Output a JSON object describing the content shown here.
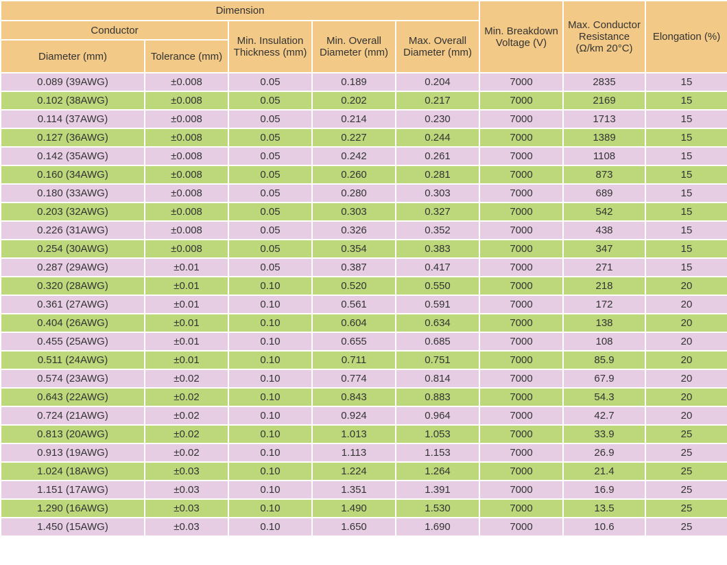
{
  "headers": {
    "dimension": "Dimension",
    "conductor": "Conductor",
    "diameter": "Diameter (mm)",
    "tolerance": "Tolerance (mm)",
    "min_insulation": "Min. Insulation Thickness (mm)",
    "min_overall": "Min. Overall Diameter (mm)",
    "max_overall": "Max. Overall Diameter (mm)",
    "breakdown": "Min. Breakdown Voltage (V)",
    "resistance": "Max. Conductor Resistance (Ω/km 20°C)",
    "elongation": "Elongation (%)"
  },
  "rows": [
    [
      "0.089 (39AWG)",
      "±0.008",
      "0.05",
      "0.189",
      "0.204",
      "7000",
      "2835",
      "15"
    ],
    [
      "0.102 (38AWG)",
      "±0.008",
      "0.05",
      "0.202",
      "0.217",
      "7000",
      "2169",
      "15"
    ],
    [
      "0.114 (37AWG)",
      "±0.008",
      "0.05",
      "0.214",
      "0.230",
      "7000",
      "1713",
      "15"
    ],
    [
      "0.127 (36AWG)",
      "±0.008",
      "0.05",
      "0.227",
      "0.244",
      "7000",
      "1389",
      "15"
    ],
    [
      "0.142 (35AWG)",
      "±0.008",
      "0.05",
      "0.242",
      "0.261",
      "7000",
      "1108",
      "15"
    ],
    [
      "0.160 (34AWG)",
      "±0.008",
      "0.05",
      "0.260",
      "0.281",
      "7000",
      "873",
      "15"
    ],
    [
      "0.180 (33AWG)",
      "±0.008",
      "0.05",
      "0.280",
      "0.303",
      "7000",
      "689",
      "15"
    ],
    [
      "0.203 (32AWG)",
      "±0.008",
      "0.05",
      "0.303",
      "0.327",
      "7000",
      "542",
      "15"
    ],
    [
      "0.226 (31AWG)",
      "±0.008",
      "0.05",
      "0.326",
      "0.352",
      "7000",
      "438",
      "15"
    ],
    [
      "0.254 (30AWG)",
      "±0.008",
      "0.05",
      "0.354",
      "0.383",
      "7000",
      "347",
      "15"
    ],
    [
      "0.287 (29AWG)",
      "±0.01",
      "0.05",
      "0.387",
      "0.417",
      "7000",
      "271",
      "15"
    ],
    [
      "0.320 (28AWG)",
      "±0.01",
      "0.10",
      "0.520",
      "0.550",
      "7000",
      "218",
      "20"
    ],
    [
      "0.361 (27AWG)",
      "±0.01",
      "0.10",
      "0.561",
      "0.591",
      "7000",
      "172",
      "20"
    ],
    [
      "0.404 (26AWG)",
      "±0.01",
      "0.10",
      "0.604",
      "0.634",
      "7000",
      "138",
      "20"
    ],
    [
      "0.455 (25AWG)",
      "±0.01",
      "0.10",
      "0.655",
      "0.685",
      "7000",
      "108",
      "20"
    ],
    [
      "0.511 (24AWG)",
      "±0.01",
      "0.10",
      "0.711",
      "0.751",
      "7000",
      "85.9",
      "20"
    ],
    [
      "0.574 (23AWG)",
      "±0.02",
      "0.10",
      "0.774",
      "0.814",
      "7000",
      "67.9",
      "20"
    ],
    [
      "0.643 (22AWG)",
      "±0.02",
      "0.10",
      "0.843",
      "0.883",
      "7000",
      "54.3",
      "20"
    ],
    [
      "0.724 (21AWG)",
      "±0.02",
      "0.10",
      "0.924",
      "0.964",
      "7000",
      "42.7",
      "20"
    ],
    [
      "0.813 (20AWG)",
      "±0.02",
      "0.10",
      "1.013",
      "1.053",
      "7000",
      "33.9",
      "25"
    ],
    [
      "0.913 (19AWG)",
      "±0.02",
      "0.10",
      "1.113",
      "1.153",
      "7000",
      "26.9",
      "25"
    ],
    [
      "1.024 (18AWG)",
      "±0.03",
      "0.10",
      "1.224",
      "1.264",
      "7000",
      "21.4",
      "25"
    ],
    [
      "1.151 (17AWG)",
      "±0.03",
      "0.10",
      "1.351",
      "1.391",
      "7000",
      "16.9",
      "25"
    ],
    [
      "1.290 (16AWG)",
      "±0.03",
      "0.10",
      "1.490",
      "1.530",
      "7000",
      "13.5",
      "25"
    ],
    [
      "1.450 (15AWG)",
      "±0.03",
      "0.10",
      "1.650",
      "1.690",
      "7000",
      "10.6",
      "25"
    ]
  ],
  "colors": {
    "header_bg": "#f3c987",
    "row_odd_bg": "#e6cde4",
    "row_even_bg": "#bcd87a",
    "text": "#333333"
  }
}
